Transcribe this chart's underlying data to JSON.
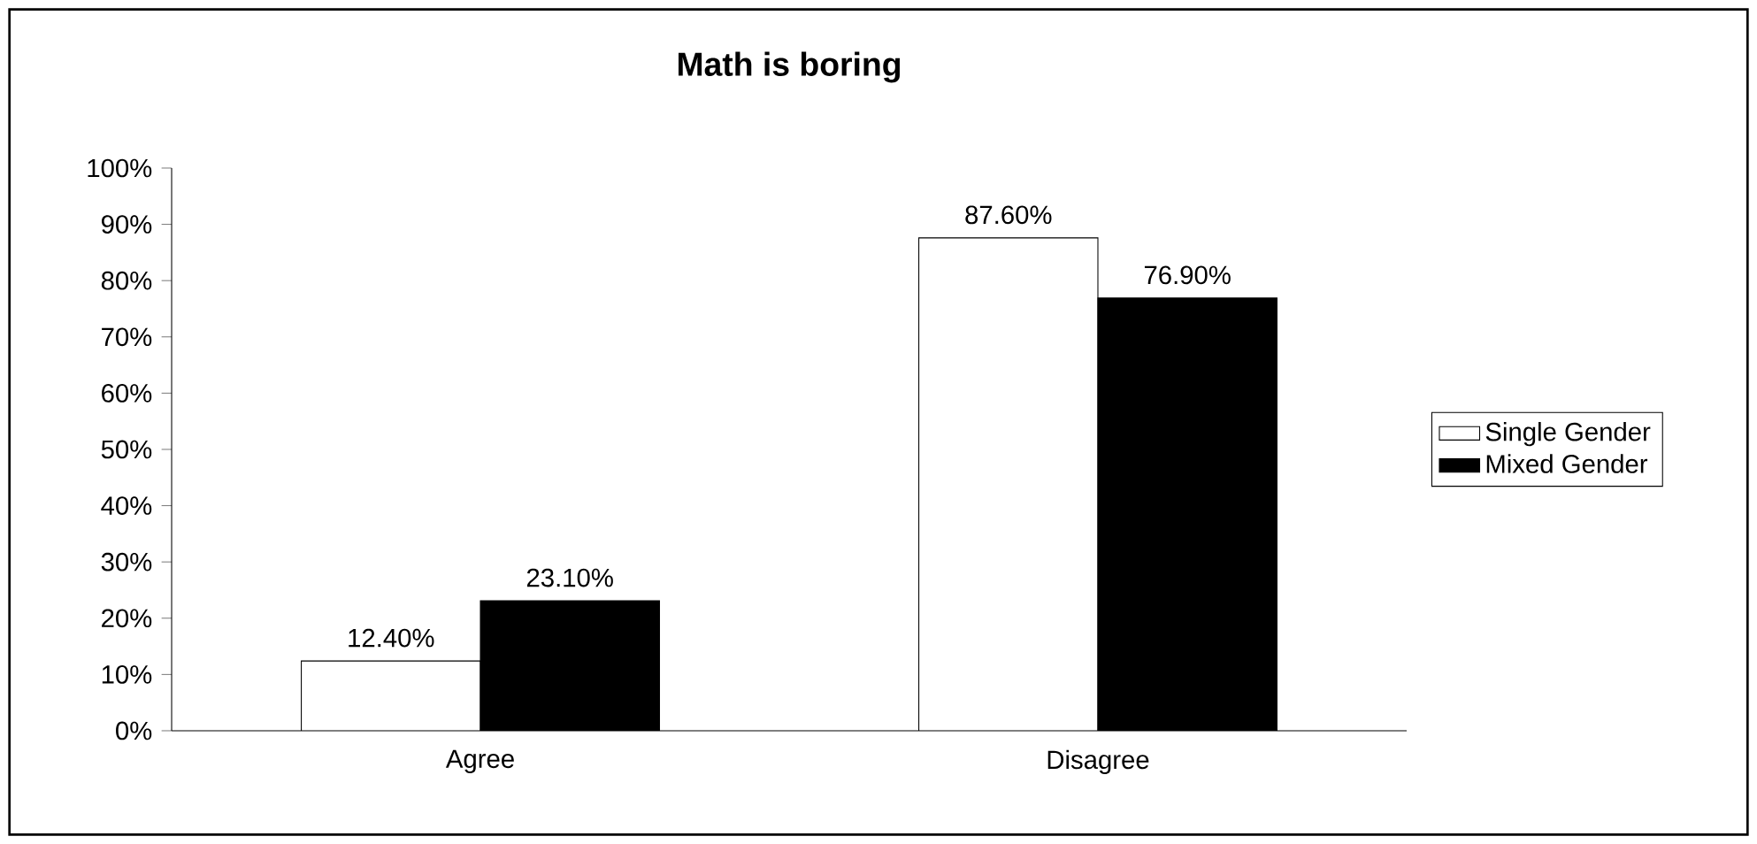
{
  "chart_data": {
    "type": "bar",
    "title": "Math is boring",
    "categories": [
      "Agree",
      "Disagree"
    ],
    "series": [
      {
        "name": "Single Gender",
        "color": "#ffffff",
        "values": [
          12.4,
          87.6
        ],
        "value_labels": [
          "12.40%",
          "87.60%"
        ]
      },
      {
        "name": "Mixed Gender",
        "color": "#000000",
        "values": [
          23.1,
          76.9
        ],
        "value_labels": [
          "23.10%",
          "76.90%"
        ]
      }
    ],
    "ylim": [
      0,
      100
    ],
    "yticks": [
      {
        "value": 0,
        "label": "0%"
      },
      {
        "value": 10,
        "label": "10%"
      },
      {
        "value": 20,
        "label": "20%"
      },
      {
        "value": 30,
        "label": "30%"
      },
      {
        "value": 40,
        "label": "40%"
      },
      {
        "value": 50,
        "label": "50%"
      },
      {
        "value": 60,
        "label": "60%"
      },
      {
        "value": 70,
        "label": "70%"
      },
      {
        "value": 80,
        "label": "80%"
      },
      {
        "value": 90,
        "label": "90%"
      },
      {
        "value": 100,
        "label": "100%"
      }
    ],
    "legend": "right"
  }
}
